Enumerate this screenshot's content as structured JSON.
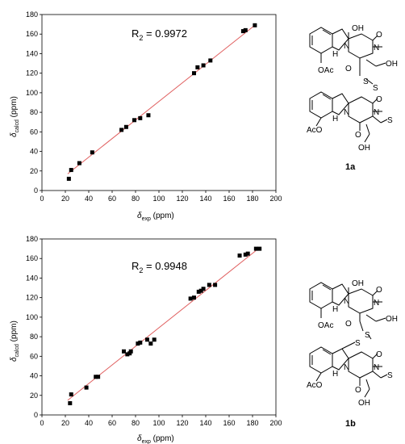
{
  "chart_data": [
    {
      "type": "scatter",
      "xlabel_main": "δ",
      "xlabel_sub": "exp",
      "xlabel_unit": " (ppm)",
      "ylabel_main": "δ",
      "ylabel_sub": "calcd",
      "ylabel_unit": " (ppm)",
      "r2_main": "R",
      "r2_sub": "2",
      "r2_value": " = 0.9972",
      "xlim": [
        0,
        200
      ],
      "ylim": [
        0,
        180
      ],
      "xticks": [
        0,
        20,
        40,
        60,
        80,
        100,
        120,
        140,
        160,
        180,
        200
      ],
      "yticks": [
        0,
        20,
        40,
        60,
        80,
        100,
        120,
        140,
        160,
        180
      ],
      "fit_line": {
        "x": [
          22,
          183
        ],
        "y": [
          17,
          170
        ]
      },
      "points": [
        {
          "x": 23,
          "y": 12
        },
        {
          "x": 25,
          "y": 21
        },
        {
          "x": 32,
          "y": 28
        },
        {
          "x": 43,
          "y": 39
        },
        {
          "x": 68,
          "y": 62
        },
        {
          "x": 72,
          "y": 65
        },
        {
          "x": 79,
          "y": 72
        },
        {
          "x": 84,
          "y": 74
        },
        {
          "x": 91,
          "y": 77
        },
        {
          "x": 130,
          "y": 120
        },
        {
          "x": 133,
          "y": 126
        },
        {
          "x": 138,
          "y": 128
        },
        {
          "x": 144,
          "y": 133
        },
        {
          "x": 172,
          "y": 163
        },
        {
          "x": 174,
          "y": 164
        },
        {
          "x": 182,
          "y": 169
        }
      ],
      "compound_label": "1a"
    },
    {
      "type": "scatter",
      "xlabel_main": "δ",
      "xlabel_sub": "exp",
      "xlabel_unit": " (ppm)",
      "ylabel_main": "δ",
      "ylabel_sub": "calcd",
      "ylabel_unit": " (ppm)",
      "r2_main": "R",
      "r2_sub": "2",
      "r2_value": " = 0.9948",
      "xlim": [
        0,
        200
      ],
      "ylim": [
        0,
        180
      ],
      "xticks": [
        0,
        20,
        40,
        60,
        80,
        100,
        120,
        140,
        160,
        180,
        200
      ],
      "yticks": [
        0,
        20,
        40,
        60,
        80,
        100,
        120,
        140,
        160,
        180
      ],
      "fit_line": {
        "x": [
          22,
          186
        ],
        "y": [
          15,
          171
        ]
      },
      "points": [
        {
          "x": 24,
          "y": 12
        },
        {
          "x": 25,
          "y": 21
        },
        {
          "x": 38,
          "y": 28
        },
        {
          "x": 46,
          "y": 39
        },
        {
          "x": 48,
          "y": 39
        },
        {
          "x": 70,
          "y": 65
        },
        {
          "x": 73,
          "y": 62
        },
        {
          "x": 75,
          "y": 63
        },
        {
          "x": 76,
          "y": 65
        },
        {
          "x": 82,
          "y": 73
        },
        {
          "x": 84,
          "y": 74
        },
        {
          "x": 90,
          "y": 77
        },
        {
          "x": 93,
          "y": 73
        },
        {
          "x": 96,
          "y": 77
        },
        {
          "x": 127,
          "y": 119
        },
        {
          "x": 130,
          "y": 120
        },
        {
          "x": 134,
          "y": 126
        },
        {
          "x": 136,
          "y": 127
        },
        {
          "x": 138,
          "y": 129
        },
        {
          "x": 143,
          "y": 133
        },
        {
          "x": 148,
          "y": 133
        },
        {
          "x": 169,
          "y": 163
        },
        {
          "x": 174,
          "y": 164
        },
        {
          "x": 176,
          "y": 165
        },
        {
          "x": 183,
          "y": 170
        },
        {
          "x": 186,
          "y": 170
        }
      ],
      "compound_label": "1b"
    }
  ],
  "structure_labels": {
    "oh": "OH",
    "oac": "OAc",
    "aco": "AcO",
    "h": "H",
    "n": "N",
    "o": "O",
    "s": "S"
  },
  "colors": {
    "fit_line": "#e06060",
    "points": "#000000",
    "axes": "#000000"
  }
}
